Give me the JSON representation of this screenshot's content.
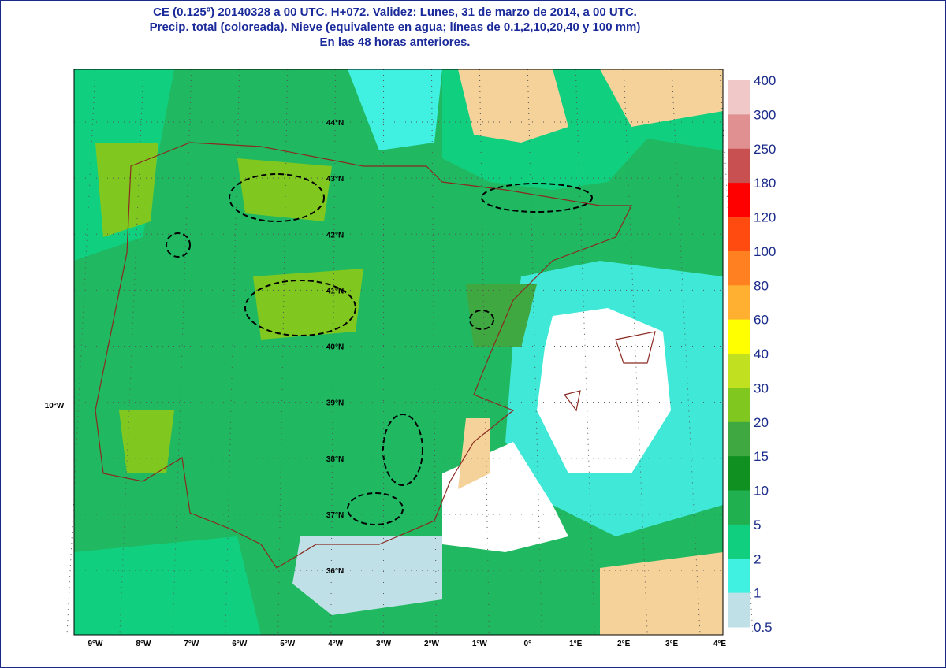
{
  "header": {
    "lines": [
      "CE (0.125º) 20140328 a 00 UTC.  H+072. Validez: Lunes, 31 de marzo de 2014,  a  00 UTC.",
      "Precip. total (coloreada). Nieve (equivalente en agua; líneas de 0.1,2,10,20,40 y 100 mm)",
      "En las 48 horas anteriores."
    ]
  },
  "legend": {
    "levels": [
      400,
      300,
      250,
      180,
      120,
      100,
      80,
      60,
      40,
      30,
      20,
      15,
      10,
      5,
      2,
      1,
      0.5
    ],
    "colors": [
      "#f0c8c8",
      "#e09090",
      "#c85050",
      "#ff0000",
      "#ff4a10",
      "#ff8020",
      "#ffb030",
      "#ffff00",
      "#c0e020",
      "#80c820",
      "#40a840",
      "#109020",
      "#20b050",
      "#10d080",
      "#40f0e0",
      "#c0e0e8"
    ]
  },
  "map": {
    "lon_labels": [
      "9°W",
      "8°W",
      "7°W",
      "6°W",
      "5°W",
      "4°W",
      "3°W",
      "2°W",
      "1°W",
      "0°",
      "1°E",
      "2°E",
      "3°E",
      "4°E"
    ],
    "lat_labels": [
      "44°N",
      "43°N",
      "42°N",
      "41°N",
      "40°N",
      "39°N",
      "38°N",
      "37°N",
      "36°N"
    ],
    "side_label": "10°W"
  }
}
